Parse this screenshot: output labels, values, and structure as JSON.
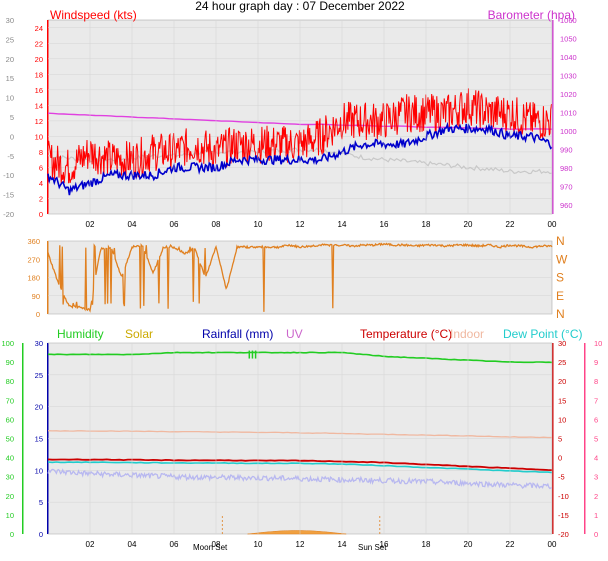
{
  "title": "24 hour graph day : 07 December 2022",
  "x_ticks": [
    "02",
    "04",
    "06",
    "08",
    "10",
    "12",
    "14",
    "16",
    "18",
    "20",
    "22",
    "00"
  ],
  "colors": {
    "windspeed": "#ff0000",
    "gust_avg": "#0000cc",
    "barometer": "#e040e0",
    "baro_axis": "#cc33cc",
    "prev_wind": "#c8c8c8",
    "direction": "#e08020",
    "humidity": "#22cc22",
    "solar": "#ccaa00",
    "rainfall": "#0000aa",
    "uv": "#cc66cc",
    "temperature": "#cc0000",
    "indoor": "#f0b8a0",
    "dewpoint": "#22cccc",
    "temp_axis": "#ff4488",
    "plot_bg": "#eaeaea"
  },
  "chart_data": [
    {
      "type": "line",
      "title": "24 hour graph day : 07 December 2022",
      "left_axis": {
        "label": "Windspeed (kts)",
        "ticks": [
          0,
          2,
          4,
          6,
          8,
          10,
          12,
          14,
          16,
          18,
          20,
          22,
          24
        ],
        "ylim": [
          0,
          25
        ]
      },
      "outer_left_ticks": [
        -20,
        -15,
        -10,
        -5,
        0,
        5,
        10,
        15,
        20,
        25,
        30
      ],
      "right_axis": {
        "label": "Barometer (hpa)",
        "ticks": [
          960,
          970,
          980,
          990,
          1000,
          1010,
          1020,
          1030,
          1040,
          1050,
          1060
        ],
        "ylim": [
          955,
          1060
        ]
      },
      "x_hours": [
        0,
        1,
        2,
        3,
        4,
        5,
        6,
        7,
        8,
        9,
        10,
        11,
        12,
        13,
        14,
        15,
        16,
        17,
        18,
        19,
        20,
        21,
        22,
        23,
        24
      ],
      "series": [
        {
          "name": "Windspeed (kts)",
          "axis": "left",
          "values": [
            7,
            6,
            8,
            7,
            7,
            8,
            8,
            9,
            8,
            9,
            9,
            9,
            9,
            10,
            12,
            12,
            12,
            13,
            13,
            13,
            14,
            13,
            13,
            12,
            12
          ]
        },
        {
          "name": "",
          "axis": "left",
          "values": [
            5,
            3,
            4,
            5,
            5,
            5,
            6,
            6,
            6,
            7,
            7,
            7,
            7,
            7,
            8,
            9,
            9,
            9,
            10,
            11,
            11,
            11,
            10,
            10,
            9
          ]
        },
        {
          "name": "",
          "axis": "left",
          "values": [
            7.5,
            7.2,
            7,
            7,
            7.2,
            7.5,
            7.5,
            7.8,
            8,
            8,
            8,
            8.2,
            8.3,
            8.3,
            7.8,
            7.3,
            7,
            6.8,
            6.5,
            6.3,
            6,
            5.8,
            5.5,
            5.5,
            5.5
          ]
        },
        {
          "name": "Barometer (hpa)",
          "axis": "right",
          "values": [
            1009.5,
            1009,
            1008.5,
            1008,
            1007.5,
            1007,
            1006.5,
            1006,
            1005.5,
            1005,
            1004.5,
            1004,
            1003.5,
            1003.5,
            1003,
            1003,
            1002.5,
            1002.5,
            1002,
            1002,
            1001.5,
            1001.5,
            1001,
            1001,
            1001
          ]
        }
      ]
    },
    {
      "type": "scatter",
      "title": "",
      "y_ticks": [
        0,
        90,
        180,
        270,
        360
      ],
      "right_labels": [
        "N",
        "W",
        "S",
        "E",
        "N"
      ],
      "ylim": [
        0,
        360
      ],
      "hours": [
        0,
        0.5,
        1,
        1.5,
        2,
        2.5,
        3,
        3.5,
        4,
        4.5,
        5,
        5.5,
        6,
        6.5,
        7,
        7.5,
        8,
        8.5,
        9,
        9.5,
        10,
        10.5,
        11,
        11.5,
        12,
        12.5,
        13,
        13.5,
        14,
        14.5,
        15,
        15.5,
        16,
        16.5,
        17,
        17.5,
        18,
        18.5,
        19,
        19.5,
        20,
        20.5,
        21,
        21.5,
        22,
        22.5,
        23,
        23.5,
        24
      ],
      "values": [
        300,
        150,
        40,
        30,
        20,
        320,
        330,
        180,
        330,
        340,
        200,
        330,
        330,
        300,
        320,
        180,
        330,
        120,
        330,
        330,
        330,
        330,
        330,
        340,
        330,
        335,
        340,
        340,
        340,
        335,
        340,
        340,
        345,
        340,
        340,
        335,
        340,
        340,
        335,
        340,
        340,
        335,
        340,
        330,
        340,
        335,
        330,
        335,
        335
      ]
    },
    {
      "type": "line",
      "left_axis": {
        "label": "Humidity",
        "ticks": [
          0,
          10,
          20,
          30,
          40,
          50,
          60,
          70,
          80,
          90,
          100
        ],
        "ylim": [
          0,
          100
        ]
      },
      "inner_left_ticks": [
        0,
        5,
        10,
        15,
        20,
        25,
        30
      ],
      "right_axis": {
        "label": "Temperature (°C)",
        "ticks": [
          -20,
          -15,
          -10,
          -5,
          0,
          5,
          10,
          15,
          20,
          25,
          30
        ],
        "ylim": [
          -20,
          30
        ]
      },
      "outer_right_ticks": [
        0,
        1,
        2,
        3,
        4,
        5,
        6,
        7,
        8,
        9,
        10
      ],
      "legend": [
        "Humidity",
        "Solar",
        "Rainfall (mm)",
        "UV",
        "Temperature (°C)",
        "Indoor",
        "Dew Point (°C)"
      ],
      "x_hours": [
        0,
        2,
        4,
        6,
        8,
        10,
        12,
        14,
        16,
        18,
        20,
        22,
        24
      ],
      "series": [
        {
          "name": "Humidity",
          "axis": "left",
          "values": [
            94,
            94,
            94,
            95,
            95,
            95,
            95,
            95,
            93,
            92,
            91,
            90,
            90
          ]
        },
        {
          "name": "Temperature (°C)",
          "axis": "right",
          "values": [
            -0.5,
            -0.5,
            -0.6,
            -0.7,
            -0.7,
            -0.8,
            -0.8,
            -1,
            -1.3,
            -1.8,
            -2.3,
            -2.8,
            -3.2
          ]
        },
        {
          "name": "Dew Point (°C)",
          "axis": "right",
          "values": [
            -1.2,
            -1.2,
            -1.3,
            -1.4,
            -1.4,
            -1.5,
            -1.5,
            -1.7,
            -2.1,
            -2.6,
            -3,
            -3.5,
            -3.9
          ]
        },
        {
          "name": "Indoor",
          "axis": "right",
          "values": [
            7,
            7,
            6.9,
            6.8,
            6.7,
            6.6,
            6.5,
            6.3,
            6.1,
            5.9,
            5.7,
            5.4,
            5.3
          ]
        },
        {
          "name": "",
          "axis": "right",
          "values": [
            -3.5,
            -4.2,
            -4.6,
            -5,
            -5.2,
            -5.3,
            -5.5,
            -5.8,
            -6,
            -6.3,
            -6.7,
            -7.2,
            -7.5
          ]
        }
      ],
      "moon_set_label": "Moon Set",
      "sun_set_label": "Sun Set",
      "sun_set_hour": 15.8
    }
  ]
}
